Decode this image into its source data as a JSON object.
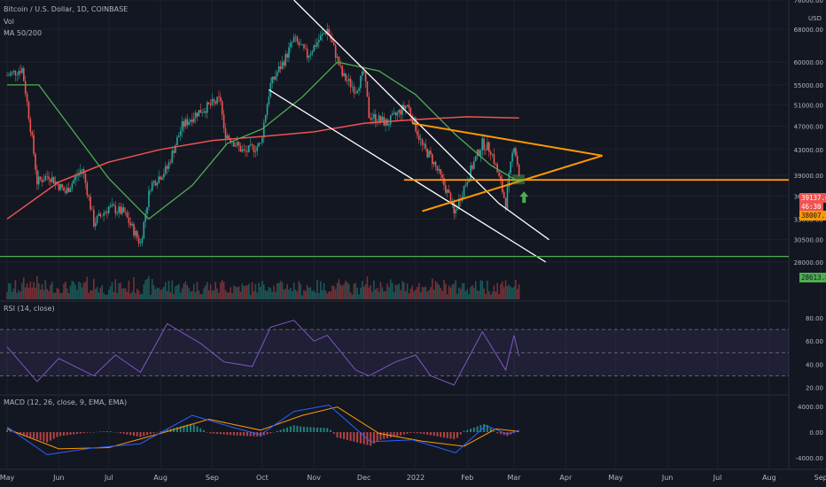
{
  "header": {
    "symbol": "Bitcoin / U.S. Dollar, 1D, COINBASE",
    "volume_label": "Vol",
    "ma_label": "MA 50/200",
    "rsi_label": "RSI (14, close)",
    "macd_label": "MACD (12, 26, close, 9, EMA, EMA)"
  },
  "currency": "USD",
  "colors": {
    "background": "#131722",
    "up": "#26a69a",
    "down": "#ef5350",
    "ma50": "#4caf50",
    "ma200": "#ef5350",
    "trendline_white": "#ffffff",
    "pattern_orange": "#ff9800",
    "support_green": "#4caf50",
    "rsi": "#7e57c2",
    "macd": "#2962ff",
    "signal": "#ff9800"
  },
  "badges": {
    "last_price": "39137.63",
    "countdown": "46:30",
    "ma_value": "38007.77",
    "support_value": "28613.88"
  },
  "chart_data": {
    "type": "line",
    "x_ticks": [
      "May",
      "Jun",
      "Jul",
      "Aug",
      "Sep",
      "Oct",
      "Nov",
      "Dec",
      "2022",
      "Feb",
      "Mar",
      "Apr",
      "May",
      "Jun",
      "Jul",
      "Aug",
      "Sep",
      "22"
    ],
    "price_axis_ticks": [
      "76000.00",
      "68000.00",
      "60000.00",
      "55000.00",
      "51000.00",
      "47000.00",
      "43000.00",
      "39000.00",
      "36000.00",
      "33000.00",
      "30500.00",
      "28000.00"
    ],
    "price_ylim": [
      26000,
      76000
    ],
    "price_path": [
      [
        "2021-05-01",
        57000
      ],
      [
        "2021-05-10",
        58500
      ],
      [
        "2021-05-14",
        49000
      ],
      [
        "2021-05-19",
        38000
      ],
      [
        "2021-05-26",
        39000
      ],
      [
        "2021-06-05",
        36500
      ],
      [
        "2021-06-15",
        40000
      ],
      [
        "2021-06-22",
        32500
      ],
      [
        "2021-07-01",
        34500
      ],
      [
        "2021-07-10",
        33800
      ],
      [
        "2021-07-20",
        30000
      ],
      [
        "2021-07-26",
        37500
      ],
      [
        "2021-08-05",
        40000
      ],
      [
        "2021-08-14",
        47000
      ],
      [
        "2021-08-23",
        49500
      ],
      [
        "2021-09-06",
        52000
      ],
      [
        "2021-09-08",
        46000
      ],
      [
        "2021-09-20",
        42500
      ],
      [
        "2021-09-30",
        43800
      ],
      [
        "2021-10-06",
        55000
      ],
      [
        "2021-10-15",
        61000
      ],
      [
        "2021-10-20",
        65500
      ],
      [
        "2021-10-28",
        61500
      ],
      [
        "2021-11-09",
        68000
      ],
      [
        "2021-11-18",
        57000
      ],
      [
        "2021-11-26",
        54000
      ],
      [
        "2021-12-01",
        57500
      ],
      [
        "2021-12-04",
        49000
      ],
      [
        "2021-12-15",
        47500
      ],
      [
        "2021-12-27",
        51000
      ],
      [
        "2022-01-05",
        43500
      ],
      [
        "2022-01-10",
        41800
      ],
      [
        "2022-01-22",
        35500
      ],
      [
        "2022-01-24",
        33500
      ],
      [
        "2022-02-01",
        38500
      ],
      [
        "2022-02-10",
        44000
      ],
      [
        "2022-02-15",
        43000
      ],
      [
        "2022-02-24",
        35000
      ],
      [
        "2022-03-01",
        44000
      ],
      [
        "2022-03-04",
        39137.63
      ]
    ],
    "ma50": [
      [
        "2021-05-01",
        55000
      ],
      [
        "2021-05-20",
        55000
      ],
      [
        "2021-06-10",
        46000
      ],
      [
        "2021-07-01",
        38500
      ],
      [
        "2021-07-25",
        33000
      ],
      [
        "2021-08-20",
        37500
      ],
      [
        "2021-09-10",
        44000
      ],
      [
        "2021-10-01",
        46500
      ],
      [
        "2021-10-25",
        52500
      ],
      [
        "2021-11-15",
        60000
      ],
      [
        "2021-12-10",
        58000
      ],
      [
        "2022-01-01",
        53000
      ],
      [
        "2022-01-25",
        45500
      ],
      [
        "2022-02-15",
        40500
      ],
      [
        "2022-03-04",
        38007.77
      ]
    ],
    "ma200": [
      [
        "2021-05-01",
        33000
      ],
      [
        "2021-06-01",
        38000
      ],
      [
        "2021-07-01",
        41000
      ],
      [
        "2021-08-01",
        43000
      ],
      [
        "2021-09-01",
        44500
      ],
      [
        "2021-10-01",
        45200
      ],
      [
        "2021-11-01",
        46000
      ],
      [
        "2021-12-01",
        47500
      ],
      [
        "2022-01-01",
        48200
      ],
      [
        "2022-02-01",
        48700
      ],
      [
        "2022-03-04",
        48500
      ]
    ],
    "rsi": {
      "ylim": [
        15,
        90
      ],
      "ticks": [
        "80.00",
        "60.00",
        "40.00",
        "20.00"
      ],
      "bands": [
        70,
        50,
        30
      ],
      "values": [
        [
          "2021-05-01",
          55
        ],
        [
          "2021-05-19",
          25
        ],
        [
          "2021-06-01",
          45
        ],
        [
          "2021-06-22",
          30
        ],
        [
          "2021-07-05",
          48
        ],
        [
          "2021-07-20",
          33
        ],
        [
          "2021-08-05",
          75
        ],
        [
          "2021-08-25",
          58
        ],
        [
          "2021-09-08",
          42
        ],
        [
          "2021-09-25",
          38
        ],
        [
          "2021-10-06",
          72
        ],
        [
          "2021-10-20",
          78
        ],
        [
          "2021-11-01",
          60
        ],
        [
          "2021-11-09",
          65
        ],
        [
          "2021-11-26",
          35
        ],
        [
          "2021-12-04",
          30
        ],
        [
          "2021-12-20",
          42
        ],
        [
          "2022-01-01",
          48
        ],
        [
          "2022-01-10",
          30
        ],
        [
          "2022-01-24",
          22
        ],
        [
          "2022-02-10",
          68
        ],
        [
          "2022-02-24",
          35
        ],
        [
          "2022-03-01",
          65
        ],
        [
          "2022-03-04",
          47
        ]
      ]
    },
    "macd": {
      "ylim": [
        -5500,
        5500
      ],
      "ticks": [
        "4000.00",
        "0.00",
        "-4000.00"
      ],
      "macd": [
        [
          "2021-05-01",
          800
        ],
        [
          "2021-05-25",
          -3500
        ],
        [
          "2021-06-20",
          -2500
        ],
        [
          "2021-07-20",
          -1800
        ],
        [
          "2021-08-20",
          2600
        ],
        [
          "2021-09-15",
          600
        ],
        [
          "2021-09-30",
          -400
        ],
        [
          "2021-10-20",
          3200
        ],
        [
          "2021-11-10",
          4200
        ],
        [
          "2021-12-05",
          -1500
        ],
        [
          "2021-12-30",
          -1200
        ],
        [
          "2022-01-25",
          -3200
        ],
        [
          "2022-02-12",
          1000
        ],
        [
          "2022-02-25",
          -300
        ],
        [
          "2022-03-04",
          300
        ]
      ],
      "signal": [
        [
          "2021-05-01",
          500
        ],
        [
          "2021-06-01",
          -2600
        ],
        [
          "2021-07-01",
          -2400
        ],
        [
          "2021-08-01",
          -200
        ],
        [
          "2021-08-30",
          2000
        ],
        [
          "2021-09-30",
          300
        ],
        [
          "2021-10-25",
          2600
        ],
        [
          "2021-11-15",
          3900
        ],
        [
          "2021-12-10",
          -200
        ],
        [
          "2022-01-05",
          -1400
        ],
        [
          "2022-01-30",
          -2200
        ],
        [
          "2022-02-18",
          500
        ],
        [
          "2022-03-04",
          100
        ]
      ]
    },
    "drawings": {
      "descending_channel_upper": [
        [
          "2021-10-20",
          76000
        ],
        [
          "2022-02-20",
          35000
        ],
        [
          "2022-03-22",
          30500
        ]
      ],
      "descending_channel_lower": [
        [
          "2021-10-05",
          54000
        ],
        [
          "2022-03-20",
          28000
        ]
      ],
      "triangle_upper": [
        [
          "2021-12-30",
          47500
        ],
        [
          "2022-04-23",
          42000
        ]
      ],
      "triangle_lower": [
        [
          "2022-01-05",
          34000
        ],
        [
          "2022-04-23",
          42000
        ]
      ],
      "horizontal_support_orange": 38300,
      "horizontal_support_green": 28613.88,
      "breakout_marker": "up-arrow-icon"
    }
  }
}
